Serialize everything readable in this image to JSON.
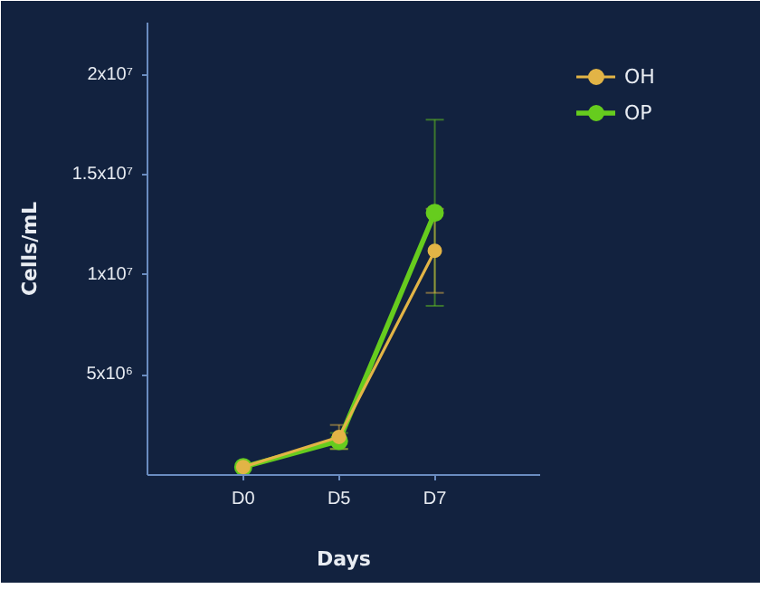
{
  "chart_data": {
    "type": "line",
    "xlabel": "Days",
    "ylabel": "Cells/mL",
    "categories": [
      "D0",
      "D5",
      "D7"
    ],
    "ylim": [
      0,
      22600000
    ],
    "yticks": [
      {
        "value": 5000000,
        "label": "5x10⁶"
      },
      {
        "value": 10000000,
        "label": "1x10⁷"
      },
      {
        "value": 15000000,
        "label": "1.5x10⁷"
      },
      {
        "value": 20000000,
        "label": "2x10⁷"
      }
    ],
    "series": [
      {
        "name": "OH",
        "color": "#e2b446",
        "values": [
          400000,
          1900000,
          11200000
        ],
        "errors": [
          null,
          600000,
          2100000
        ]
      },
      {
        "name": "OP",
        "color": "#66cc1e",
        "values": [
          400000,
          1700000,
          13100000
        ],
        "errors": [
          null,
          400000,
          4650000
        ]
      }
    ],
    "marker": "circle",
    "line_style": "solid",
    "legend": "top right",
    "grid": false
  }
}
